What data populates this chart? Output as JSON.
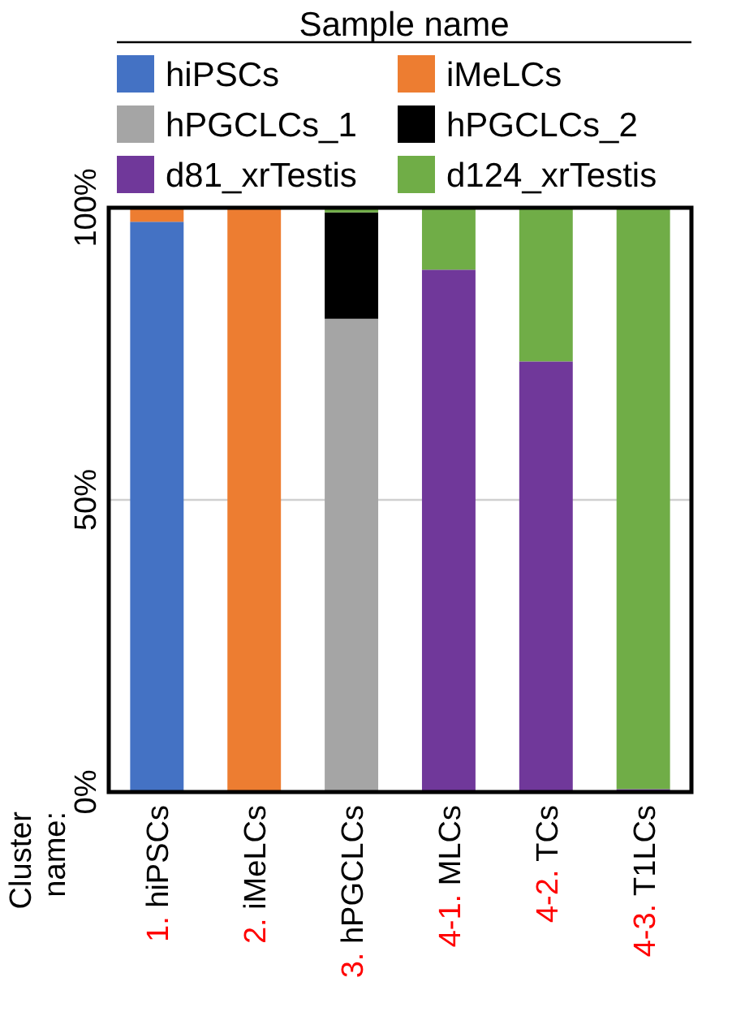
{
  "chart_data": {
    "type": "bar",
    "stacked": true,
    "legend_title": "Sample name",
    "annotations": [
      "Cluster name:"
    ],
    "categories": [
      "1. hiPSCs",
      "2. iMeLCs",
      "3. hPGCLCs",
      "4-1. MLCs",
      "4-2. TCs",
      "4-3. T1LCs"
    ],
    "series": [
      {
        "name": "hiPSCs",
        "color": "#4472c4",
        "values": [
          97.6,
          0,
          0,
          0,
          0,
          0
        ]
      },
      {
        "name": "iMeLCs",
        "color": "#ed7d31",
        "values": [
          2.4,
          100,
          0,
          0,
          0,
          0
        ]
      },
      {
        "name": "hPGCLCs_1",
        "color": "#a5a5a5",
        "values": [
          0,
          0,
          81,
          0,
          0,
          0
        ]
      },
      {
        "name": "hPGCLCs_2",
        "color": "#000000",
        "values": [
          0,
          0,
          18.2,
          0,
          0,
          0
        ]
      },
      {
        "name": "d81_xrTestis",
        "color": "#70389a",
        "values": [
          0,
          0,
          0,
          89.4,
          73.7,
          0.5
        ]
      },
      {
        "name": "d124_xrTestis",
        "color": "#70ad47",
        "values": [
          0,
          0,
          0.8,
          10.6,
          26.3,
          99.5
        ]
      }
    ],
    "ylim": [
      0,
      100
    ],
    "yticks": [
      {
        "value": 0,
        "label": "0%"
      },
      {
        "value": 50,
        "label": "50%"
      },
      {
        "value": 100,
        "label": "100%"
      }
    ],
    "grid": "y",
    "legend": "top"
  }
}
